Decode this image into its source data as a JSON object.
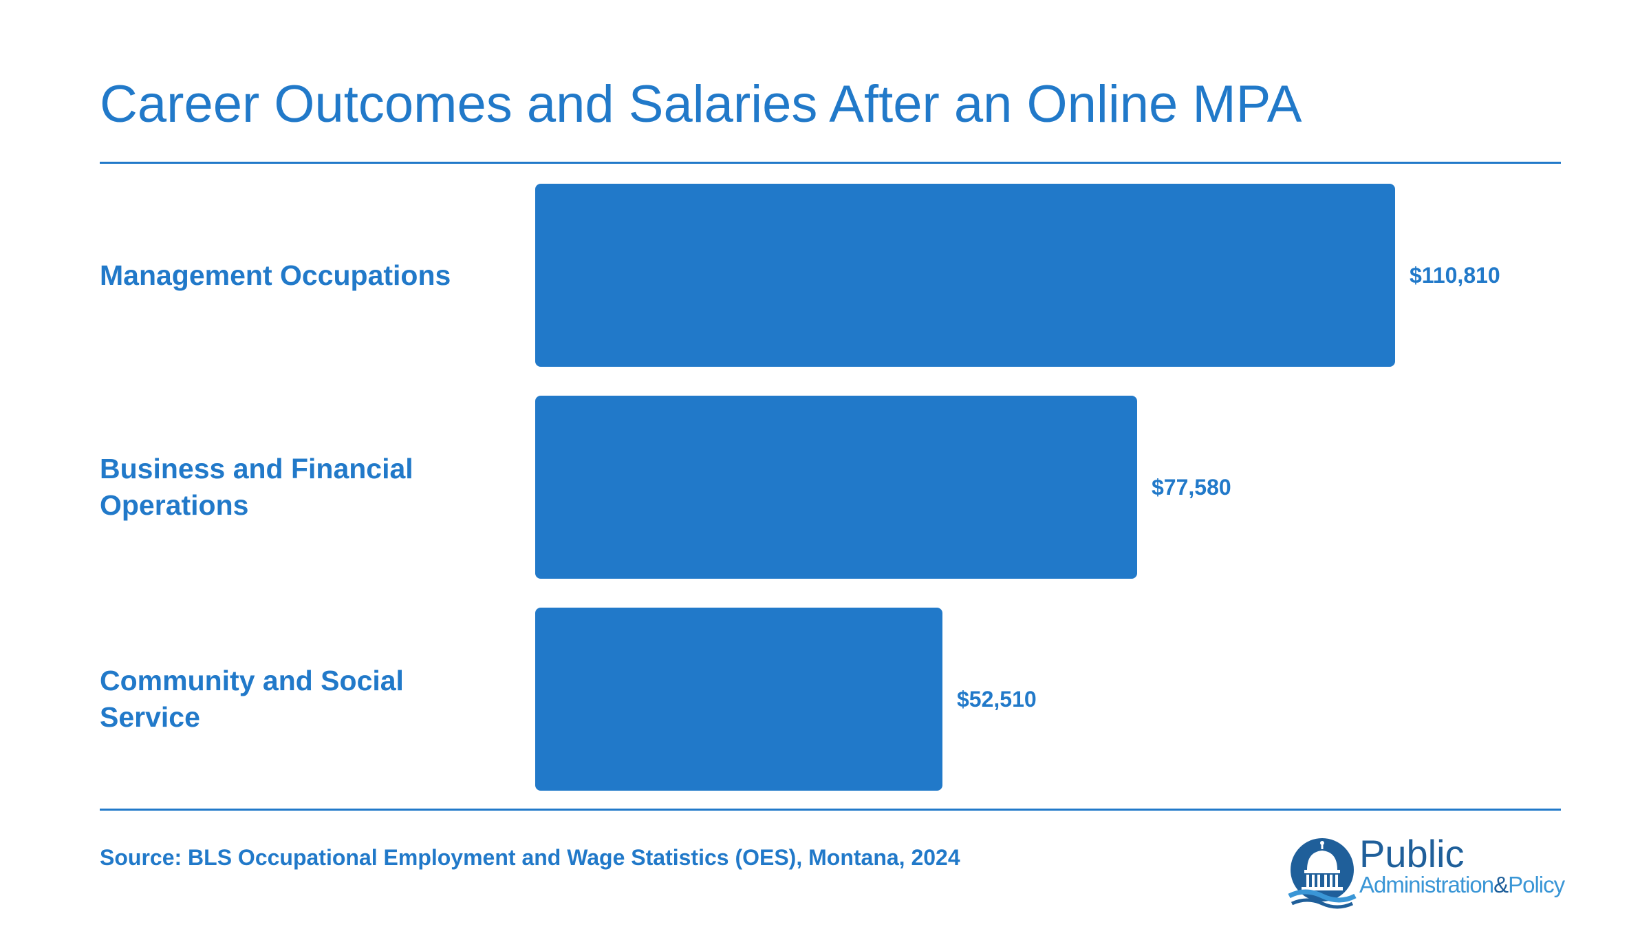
{
  "title": "Career Outcomes and Salaries After an Online MPA",
  "chart_data": {
    "type": "bar",
    "orientation": "horizontal",
    "categories": [
      "Management Occupations",
      "Business and Financial Operations",
      "Community and Social Service"
    ],
    "values": [
      110810,
      77580,
      52510
    ],
    "value_labels": [
      "$110,810",
      "$77,580",
      "$52,510"
    ],
    "title": "Career Outcomes and Salaries After an Online MPA",
    "xlabel": "",
    "ylabel": "",
    "xlim": [
      0,
      110810
    ],
    "grid": false,
    "legend": "none",
    "color": "#2179c9"
  },
  "source": "Source: BLS Occupational Employment and Wage Statistics (OES), Montana, 2024",
  "logo": {
    "word1": "Public",
    "word2": "Administration",
    "amp": "&",
    "word3": "Policy",
    "icon": "capitol-dome-icon",
    "colors": {
      "dark": "#1f5f9a",
      "light": "#3a96d6"
    }
  }
}
